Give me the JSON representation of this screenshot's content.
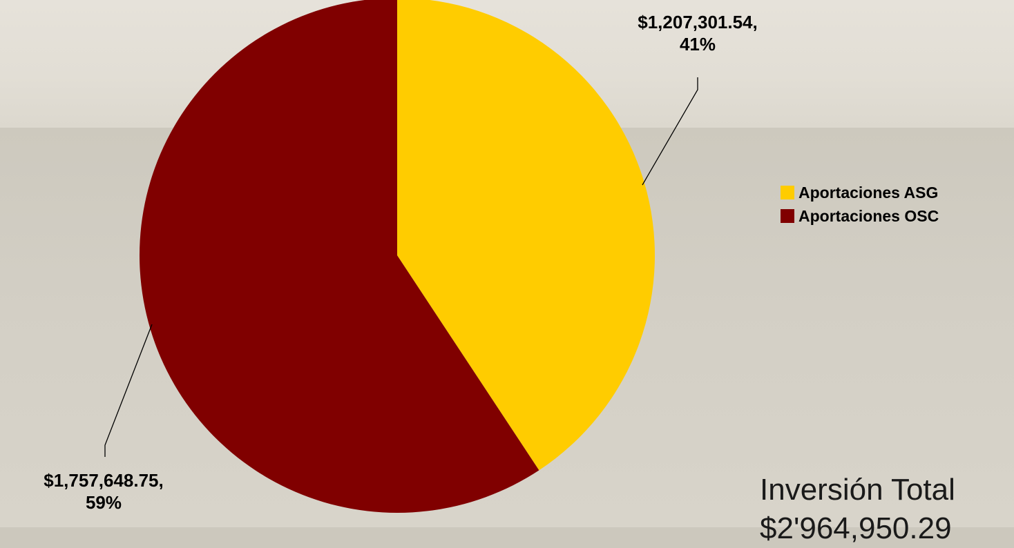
{
  "chart_data": {
    "type": "pie",
    "slices": [
      {
        "name": "Aportaciones ASG",
        "value": 1207301.54,
        "percent": 41,
        "color": "#ffcc00",
        "label_value": "$1,207,301.54,",
        "label_percent": "41%"
      },
      {
        "name": "Aportaciones OSC",
        "value": 1757648.75,
        "percent": 59,
        "color": "#800000",
        "label_value": "$1,757,648.75,",
        "label_percent": "59%"
      }
    ],
    "start": "12 o'clock, clockwise",
    "legend_position": "right"
  },
  "total": {
    "line1": "Inversión Total",
    "line2": "$2'964,950.29"
  },
  "background": {
    "top": "#e4e0d8",
    "bottom": "#cfcbc1"
  }
}
